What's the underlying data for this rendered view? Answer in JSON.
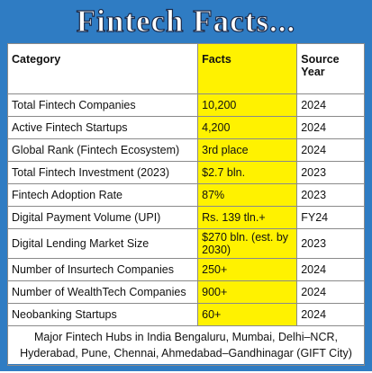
{
  "header": {
    "title": "Fintech Facts..."
  },
  "table": {
    "columns": [
      "Category",
      "Facts",
      "Source Year"
    ],
    "rows": [
      [
        "Total Fintech Companies",
        "10,200",
        "2024"
      ],
      [
        "Active Fintech Startups",
        "4,200",
        "2024"
      ],
      [
        "Global Rank (Fintech Ecosystem)",
        "3rd place",
        "2024"
      ],
      [
        "Total Fintech Investment (2023)",
        "$2.7 bln.",
        "2023"
      ],
      [
        "Fintech Adoption Rate",
        "87%",
        "2023"
      ],
      [
        "Digital Payment Volume (UPI)",
        "Rs. 139 tln.+",
        "FY24"
      ],
      [
        "Digital Lending Market Size",
        "$270 bln. (est. by 2030)",
        "2023"
      ],
      [
        "Number of Insurtech Companies",
        "250+",
        "2024"
      ],
      [
        "Number of WealthTech Companies",
        "900+",
        "2024"
      ],
      [
        "Neobanking Startups",
        "60+",
        "2024"
      ]
    ]
  },
  "footer": "Major Fintech Hubs in India Bengaluru, Mumbai, Delhi–NCR, Hyderabad, Pune, Chennai, Ahmedabad–Gandhinagar (GIFT City)"
}
